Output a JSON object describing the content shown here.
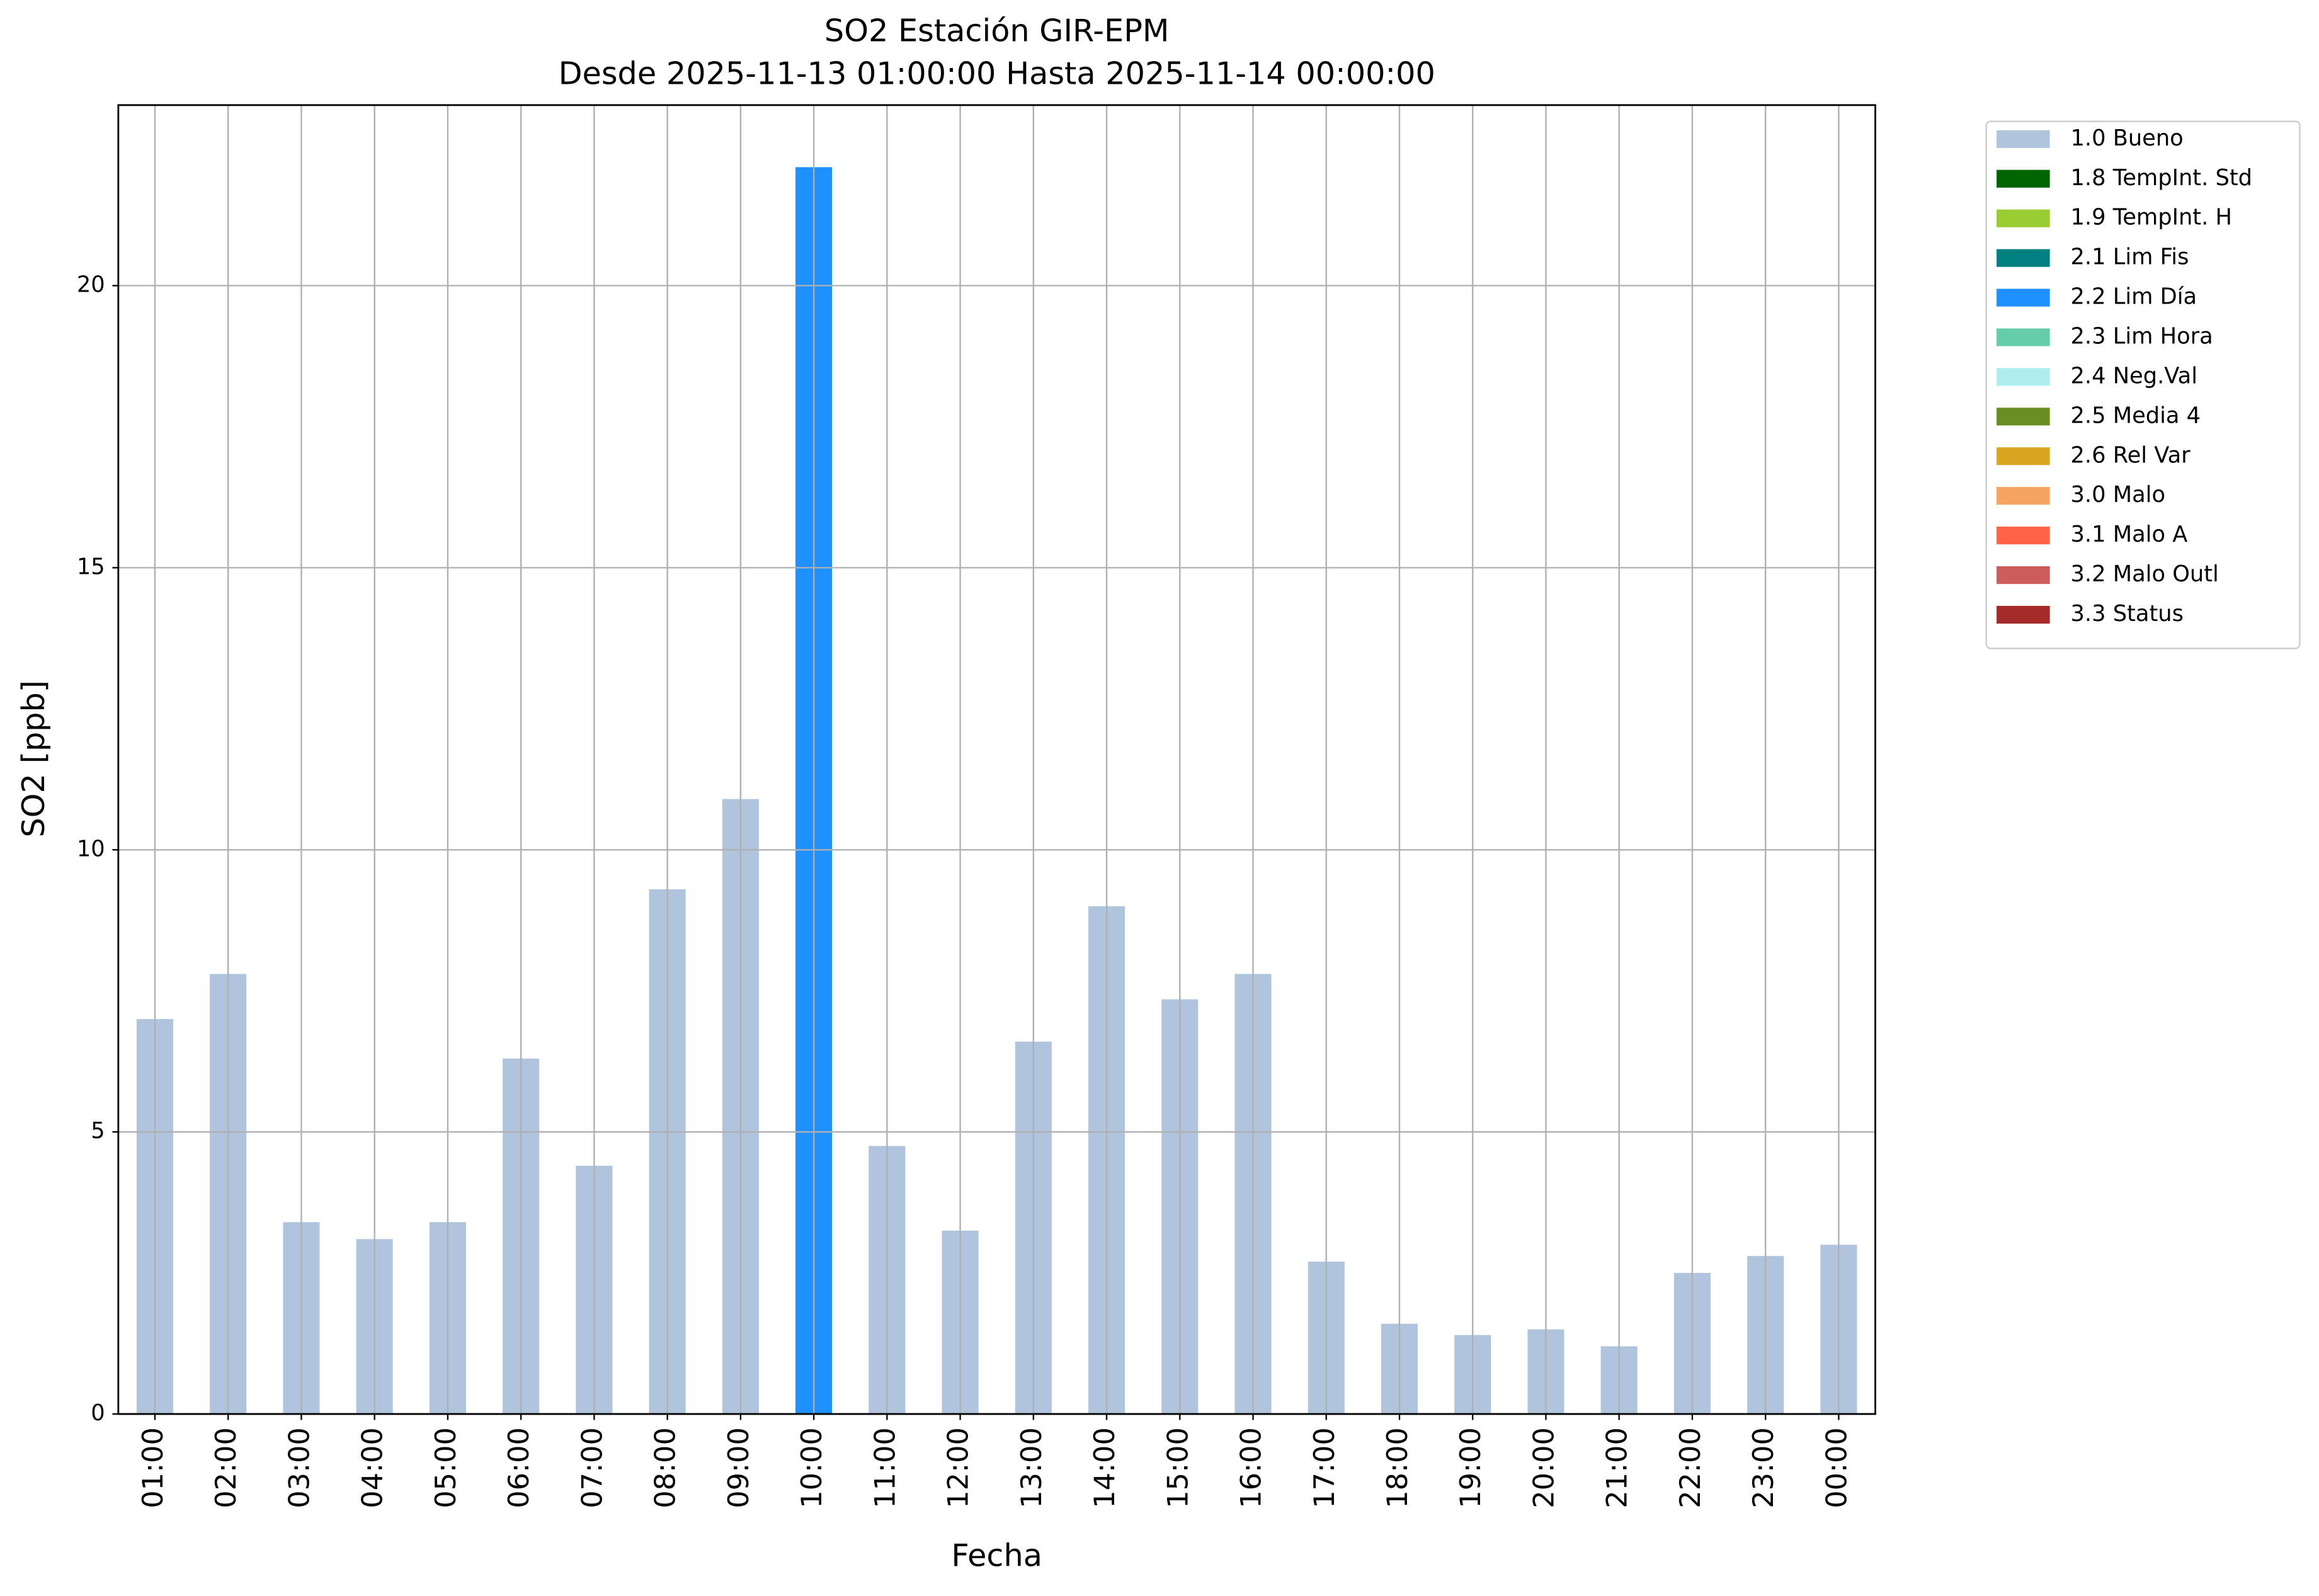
{
  "chart_data": {
    "type": "bar",
    "title": "SO2 Estación GIR-EPM",
    "subtitle": "Desde 2025-11-13 01:00:00 Hasta 2025-11-14 00:00:00",
    "x_label": "Fecha",
    "y_label": "SO2 [ppb]",
    "categories": [
      "01:00",
      "02:00",
      "03:00",
      "04:00",
      "05:00",
      "06:00",
      "07:00",
      "08:00",
      "09:00",
      "10:00",
      "11:00",
      "12:00",
      "13:00",
      "14:00",
      "15:00",
      "16:00",
      "17:00",
      "18:00",
      "19:00",
      "20:00",
      "21:00",
      "22:00",
      "23:00",
      "00:00"
    ],
    "series": [
      {
        "name": "1.0 Bueno",
        "color": "#b0c4de",
        "values": [
          7.0,
          7.8,
          3.4,
          3.1,
          3.4,
          6.3,
          4.4,
          9.3,
          10.9,
          null,
          4.75,
          3.25,
          6.6,
          9.0,
          7.35,
          7.8,
          2.7,
          1.6,
          1.4,
          1.5,
          1.2,
          2.5,
          2.8,
          3.0
        ]
      },
      {
        "name": "1.8 TempInt. Std",
        "color": "#006400",
        "values": [
          null,
          null,
          null,
          null,
          null,
          null,
          null,
          null,
          null,
          null,
          null,
          null,
          null,
          null,
          null,
          null,
          null,
          null,
          null,
          null,
          null,
          null,
          null,
          null
        ]
      },
      {
        "name": "1.9 TempInt. H",
        "color": "#9acd32",
        "values": [
          null,
          null,
          null,
          null,
          null,
          null,
          null,
          null,
          null,
          null,
          null,
          null,
          null,
          null,
          null,
          null,
          null,
          null,
          null,
          null,
          null,
          null,
          null,
          null
        ]
      },
      {
        "name": "2.1 Lim Fis",
        "color": "#008080",
        "values": [
          null,
          null,
          null,
          null,
          null,
          null,
          null,
          null,
          null,
          null,
          null,
          null,
          null,
          null,
          null,
          null,
          null,
          null,
          null,
          null,
          null,
          null,
          null,
          null
        ]
      },
      {
        "name": "2.2 Lim Día",
        "color": "#1e90ff",
        "values": [
          null,
          null,
          null,
          null,
          null,
          null,
          null,
          null,
          null,
          22.1,
          null,
          null,
          null,
          null,
          null,
          null,
          null,
          null,
          null,
          null,
          null,
          null,
          null,
          null
        ]
      },
      {
        "name": "2.3 Lim Hora",
        "color": "#66cdaa",
        "values": [
          null,
          null,
          null,
          null,
          null,
          null,
          null,
          null,
          null,
          null,
          null,
          null,
          null,
          null,
          null,
          null,
          null,
          null,
          null,
          null,
          null,
          null,
          null,
          null
        ]
      },
      {
        "name": "2.4 Neg.Val",
        "color": "#afeeee",
        "values": [
          null,
          null,
          null,
          null,
          null,
          null,
          null,
          null,
          null,
          null,
          null,
          null,
          null,
          null,
          null,
          null,
          null,
          null,
          null,
          null,
          null,
          null,
          null,
          null
        ]
      },
      {
        "name": "2.5 Media 4",
        "color": "#6b8e23",
        "values": [
          null,
          null,
          null,
          null,
          null,
          null,
          null,
          null,
          null,
          null,
          null,
          null,
          null,
          null,
          null,
          null,
          null,
          null,
          null,
          null,
          null,
          null,
          null,
          null
        ]
      },
      {
        "name": "2.6 Rel Var",
        "color": "#daa520",
        "values": [
          null,
          null,
          null,
          null,
          null,
          null,
          null,
          null,
          null,
          null,
          null,
          null,
          null,
          null,
          null,
          null,
          null,
          null,
          null,
          null,
          null,
          null,
          null,
          null
        ]
      },
      {
        "name": "3.0 Malo",
        "color": "#f4a460",
        "values": [
          null,
          null,
          null,
          null,
          null,
          null,
          null,
          null,
          null,
          null,
          null,
          null,
          null,
          null,
          null,
          null,
          null,
          null,
          null,
          null,
          null,
          null,
          null,
          null
        ]
      },
      {
        "name": "3.1 Malo A",
        "color": "#ff6347",
        "values": [
          null,
          null,
          null,
          null,
          null,
          null,
          null,
          null,
          null,
          null,
          null,
          null,
          null,
          null,
          null,
          null,
          null,
          null,
          null,
          null,
          null,
          null,
          null,
          null
        ]
      },
      {
        "name": "3.2 Malo Outl",
        "color": "#cd5c5c",
        "values": [
          null,
          null,
          null,
          null,
          null,
          null,
          null,
          null,
          null,
          null,
          null,
          null,
          null,
          null,
          null,
          null,
          null,
          null,
          null,
          null,
          null,
          null,
          null,
          null
        ]
      },
      {
        "name": "3.3 Status",
        "color": "#a52a2a",
        "values": [
          null,
          null,
          null,
          null,
          null,
          null,
          null,
          null,
          null,
          null,
          null,
          null,
          null,
          null,
          null,
          null,
          null,
          null,
          null,
          null,
          null,
          null,
          null,
          null
        ]
      }
    ],
    "ylim": [
      0,
      23.2
    ],
    "yticks": [
      0,
      5,
      10,
      15,
      20
    ],
    "grid": true
  }
}
